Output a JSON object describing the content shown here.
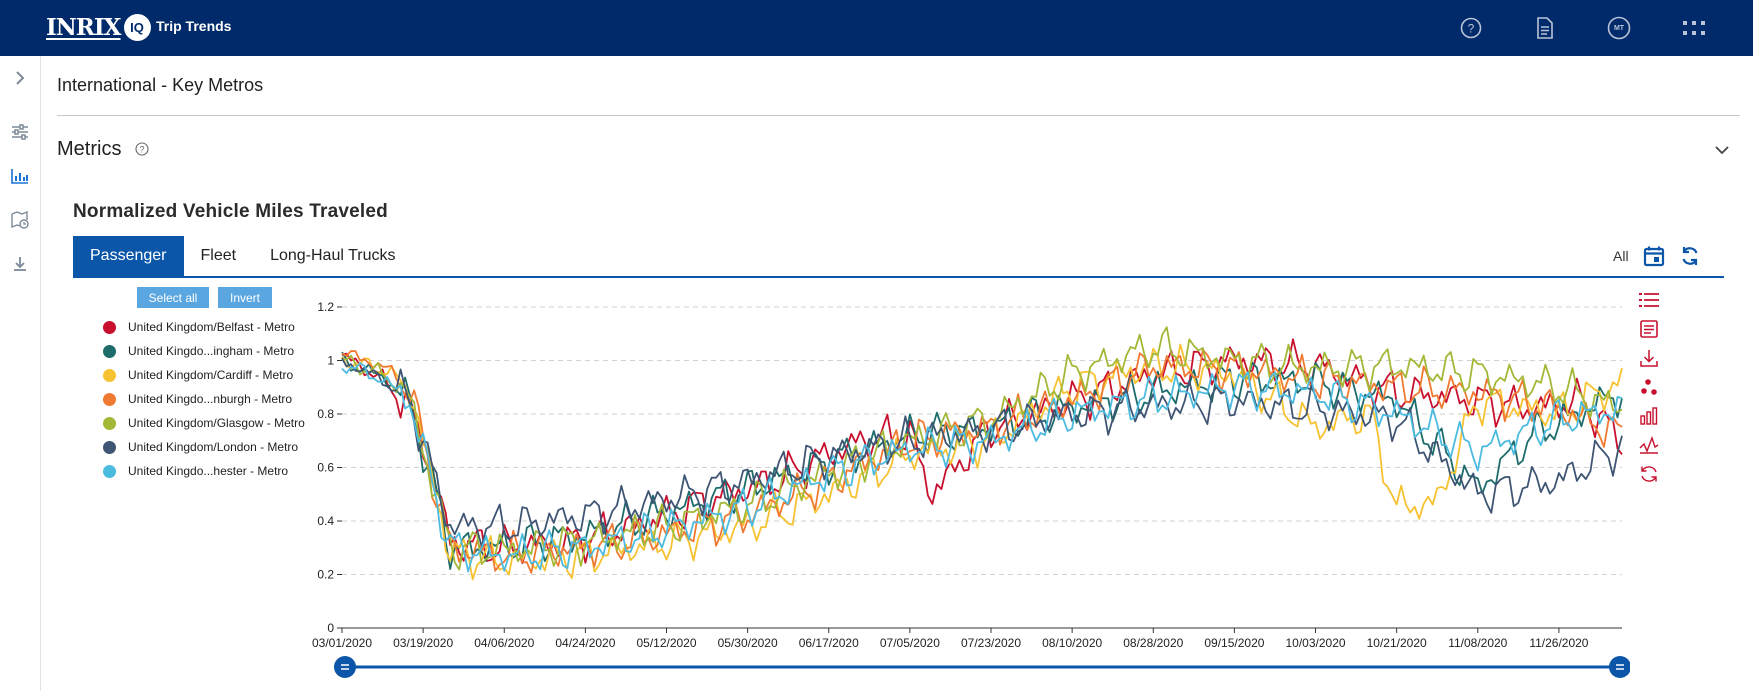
{
  "header": {
    "logo_word": "INRIX",
    "logo_badge": "IQ",
    "app_title": "Trip Trends",
    "user_initials": "MT",
    "icons": [
      "help-icon",
      "document-icon",
      "user-avatar-icon",
      "apps-grid-icon"
    ]
  },
  "sidebar": {
    "icons": [
      "expand-chevron-icon",
      "filter-sliders-icon",
      "chart-icon",
      "map-clock-icon",
      "download-icon"
    ],
    "accent": "#1a73d9"
  },
  "page": {
    "title": "International - Key Metros",
    "metrics_title": "Metrics"
  },
  "chart_section": {
    "title": "Normalized Vehicle Miles Traveled",
    "tabs": [
      {
        "label": "Passenger",
        "active": true
      },
      {
        "label": "Fleet",
        "active": false
      },
      {
        "label": "Long-Haul Trucks",
        "active": false
      }
    ],
    "range_label": "All",
    "select_all_label": "Select all",
    "invert_label": "Invert",
    "tool_icons": [
      "list-icon",
      "text-doc-icon",
      "download-icon",
      "scatter-icon",
      "bar-chart-icon",
      "line-chart-icon",
      "reset-icon"
    ],
    "tool_color": "#c8102e"
  },
  "chart_data": {
    "type": "line",
    "title": "",
    "xlabel": "",
    "ylabel": "",
    "ylim": [
      0,
      1.2
    ],
    "yticks": [
      "0",
      "0.2",
      "0.4",
      "0.6",
      "0.8",
      "1",
      "1.2"
    ],
    "xticks": [
      "03/01/2020",
      "03/19/2020",
      "04/06/2020",
      "04/24/2020",
      "05/12/2020",
      "05/30/2020",
      "06/17/2020",
      "07/05/2020",
      "07/23/2020",
      "08/10/2020",
      "08/28/2020",
      "09/15/2020",
      "10/03/2020",
      "10/21/2020",
      "11/08/2020",
      "11/26/2020"
    ],
    "x_start": "03/01/2020",
    "x_end": "12/10/2020",
    "grid": "horizontal-dashed",
    "legend_position": "left",
    "series": [
      {
        "name": "United Kingdom/Belfast - Metro",
        "color": "#c8102e",
        "points": [
          [
            "03/01/2020",
            1.02
          ],
          [
            "03/10/2020",
            0.93
          ],
          [
            "03/16/2020",
            0.82
          ],
          [
            "03/21/2020",
            0.6
          ],
          [
            "03/25/2020",
            0.32
          ],
          [
            "04/05/2020",
            0.3
          ],
          [
            "04/20/2020",
            0.32
          ],
          [
            "05/05/2020",
            0.38
          ],
          [
            "05/20/2020",
            0.47
          ],
          [
            "06/05/2020",
            0.55
          ],
          [
            "06/17/2020",
            0.65
          ],
          [
            "06/25/2020",
            0.7
          ],
          [
            "07/05/2020",
            0.72
          ],
          [
            "07/10/2020",
            0.5
          ],
          [
            "07/23/2020",
            0.75
          ],
          [
            "08/10/2020",
            0.85
          ],
          [
            "08/28/2020",
            0.95
          ],
          [
            "09/15/2020",
            1.0
          ],
          [
            "10/03/2020",
            0.98
          ],
          [
            "10/21/2020",
            0.88
          ],
          [
            "11/08/2020",
            0.85
          ],
          [
            "11/20/2020",
            0.82
          ],
          [
            "12/01/2020",
            0.85
          ],
          [
            "12/10/2020",
            0.7
          ]
        ]
      },
      {
        "name": "United Kingdo...ingham - Metro",
        "color": "#1e6b6b",
        "points": [
          [
            "03/01/2020",
            1.0
          ],
          [
            "03/10/2020",
            0.94
          ],
          [
            "03/16/2020",
            0.85
          ],
          [
            "03/25/2020",
            0.3
          ],
          [
            "04/06/2020",
            0.3
          ],
          [
            "04/24/2020",
            0.35
          ],
          [
            "05/12/2020",
            0.43
          ],
          [
            "05/30/2020",
            0.52
          ],
          [
            "06/17/2020",
            0.62
          ],
          [
            "07/05/2020",
            0.72
          ],
          [
            "07/23/2020",
            0.75
          ],
          [
            "08/10/2020",
            0.82
          ],
          [
            "08/28/2020",
            0.88
          ],
          [
            "09/15/2020",
            0.93
          ],
          [
            "10/03/2020",
            0.92
          ],
          [
            "10/21/2020",
            0.85
          ],
          [
            "11/08/2020",
            0.52
          ],
          [
            "11/20/2020",
            0.72
          ],
          [
            "12/10/2020",
            0.88
          ]
        ]
      },
      {
        "name": "United Kingdom/Cardiff - Metro",
        "color": "#f7c231",
        "points": [
          [
            "03/01/2020",
            1.0
          ],
          [
            "03/10/2020",
            0.97
          ],
          [
            "03/16/2020",
            0.9
          ],
          [
            "03/25/2020",
            0.28
          ],
          [
            "04/06/2020",
            0.25
          ],
          [
            "04/24/2020",
            0.27
          ],
          [
            "05/12/2020",
            0.32
          ],
          [
            "05/30/2020",
            0.38
          ],
          [
            "06/17/2020",
            0.5
          ],
          [
            "07/05/2020",
            0.65
          ],
          [
            "07/23/2020",
            0.7
          ],
          [
            "08/10/2020",
            0.9
          ],
          [
            "08/28/2020",
            0.98
          ],
          [
            "09/15/2020",
            0.95
          ],
          [
            "10/03/2020",
            0.75
          ],
          [
            "10/15/2020",
            0.8
          ],
          [
            "10/21/2020",
            0.45
          ],
          [
            "10/30/2020",
            0.47
          ],
          [
            "11/08/2020",
            0.85
          ],
          [
            "11/26/2020",
            0.8
          ],
          [
            "12/10/2020",
            0.92
          ]
        ]
      },
      {
        "name": "United Kingdo...nburgh - Metro",
        "color": "#f07a32",
        "points": [
          [
            "03/01/2020",
            1.03
          ],
          [
            "03/10/2020",
            0.98
          ],
          [
            "03/16/2020",
            0.9
          ],
          [
            "03/25/2020",
            0.3
          ],
          [
            "04/06/2020",
            0.27
          ],
          [
            "04/24/2020",
            0.3
          ],
          [
            "05/12/2020",
            0.35
          ],
          [
            "05/30/2020",
            0.42
          ],
          [
            "06/17/2020",
            0.55
          ],
          [
            "07/05/2020",
            0.7
          ],
          [
            "07/23/2020",
            0.75
          ],
          [
            "08/10/2020",
            0.85
          ],
          [
            "08/28/2020",
            0.98
          ],
          [
            "09/15/2020",
            0.97
          ],
          [
            "10/03/2020",
            0.93
          ],
          [
            "10/21/2020",
            0.9
          ],
          [
            "11/08/2020",
            0.88
          ],
          [
            "11/26/2020",
            0.82
          ],
          [
            "12/10/2020",
            0.72
          ]
        ]
      },
      {
        "name": "United Kingdom/Glasgow - Metro",
        "color": "#a3b837",
        "points": [
          [
            "03/01/2020",
            1.0
          ],
          [
            "03/10/2020",
            0.95
          ],
          [
            "03/16/2020",
            0.86
          ],
          [
            "03/25/2020",
            0.3
          ],
          [
            "04/06/2020",
            0.29
          ],
          [
            "04/24/2020",
            0.32
          ],
          [
            "05/12/2020",
            0.38
          ],
          [
            "05/30/2020",
            0.46
          ],
          [
            "06/17/2020",
            0.58
          ],
          [
            "07/05/2020",
            0.7
          ],
          [
            "07/23/2020",
            0.78
          ],
          [
            "08/10/2020",
            0.95
          ],
          [
            "08/28/2020",
            1.05
          ],
          [
            "09/15/2020",
            1.0
          ],
          [
            "10/03/2020",
            0.97
          ],
          [
            "10/21/2020",
            0.98
          ],
          [
            "11/08/2020",
            0.95
          ],
          [
            "11/26/2020",
            0.9
          ],
          [
            "12/10/2020",
            0.82
          ]
        ]
      },
      {
        "name": "United Kingdom/London - Metro",
        "color": "#3f5574",
        "points": [
          [
            "03/01/2020",
            1.0
          ],
          [
            "03/10/2020",
            0.93
          ],
          [
            "03/16/2020",
            0.85
          ],
          [
            "03/25/2020",
            0.38
          ],
          [
            "04/06/2020",
            0.38
          ],
          [
            "04/24/2020",
            0.42
          ],
          [
            "05/12/2020",
            0.48
          ],
          [
            "05/30/2020",
            0.55
          ],
          [
            "06/17/2020",
            0.64
          ],
          [
            "07/05/2020",
            0.7
          ],
          [
            "07/23/2020",
            0.74
          ],
          [
            "08/10/2020",
            0.8
          ],
          [
            "08/28/2020",
            0.83
          ],
          [
            "09/15/2020",
            0.85
          ],
          [
            "10/03/2020",
            0.82
          ],
          [
            "10/21/2020",
            0.78
          ],
          [
            "11/08/2020",
            0.5
          ],
          [
            "11/26/2020",
            0.55
          ],
          [
            "12/10/2020",
            0.68
          ]
        ]
      },
      {
        "name": "United Kingdo...hester - Metro",
        "color": "#4cbbe0",
        "points": [
          [
            "03/01/2020",
            0.99
          ],
          [
            "03/10/2020",
            0.93
          ],
          [
            "03/16/2020",
            0.85
          ],
          [
            "03/25/2020",
            0.3
          ],
          [
            "04/06/2020",
            0.27
          ],
          [
            "04/24/2020",
            0.3
          ],
          [
            "05/12/2020",
            0.37
          ],
          [
            "05/30/2020",
            0.45
          ],
          [
            "06/17/2020",
            0.58
          ],
          [
            "07/05/2020",
            0.67
          ],
          [
            "07/23/2020",
            0.7
          ],
          [
            "08/10/2020",
            0.8
          ],
          [
            "08/28/2020",
            0.86
          ],
          [
            "09/15/2020",
            0.9
          ],
          [
            "10/03/2020",
            0.88
          ],
          [
            "10/21/2020",
            0.8
          ],
          [
            "11/08/2020",
            0.66
          ],
          [
            "11/26/2020",
            0.78
          ],
          [
            "12/10/2020",
            0.82
          ]
        ]
      }
    ]
  }
}
